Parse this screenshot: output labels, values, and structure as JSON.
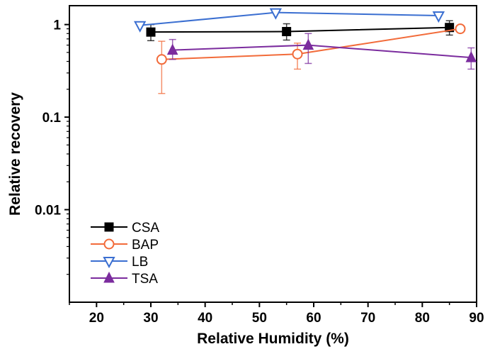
{
  "chart_data": {
    "type": "scatter",
    "xlabel": "Relative Humidity (%)",
    "ylabel": "Relative recovery",
    "xlim": [
      15,
      90
    ],
    "ylim": [
      0.001,
      1.6
    ],
    "yscale": "log",
    "xticks": [
      20,
      30,
      40,
      50,
      60,
      70,
      80,
      90
    ],
    "xtick_labels": [
      "20",
      "30",
      "40",
      "50",
      "60",
      "70",
      "80",
      "90"
    ],
    "yticks": [
      0.01,
      0.1,
      1
    ],
    "ytick_labels": [
      "0.01",
      "0.1",
      "1"
    ],
    "grid": false,
    "legend_position": "bottom-left",
    "series": [
      {
        "name": "CSA",
        "color": "#000000",
        "marker": "filled-square",
        "x": [
          30,
          55,
          85
        ],
        "y": [
          0.83,
          0.84,
          0.93
        ],
        "err_low": [
          0.67,
          0.68,
          0.77
        ],
        "err_high": [
          1.0,
          1.02,
          1.1
        ]
      },
      {
        "name": "BAP",
        "color": "#f26b3a",
        "marker": "open-circle",
        "x": [
          32,
          57,
          87
        ],
        "y": [
          0.42,
          0.48,
          0.9
        ],
        "err_low": [
          0.18,
          0.33,
          null
        ],
        "err_high": [
          0.66,
          0.63,
          null
        ]
      },
      {
        "name": "LB",
        "color": "#3b6fd1",
        "marker": "open-triangle-down",
        "x": [
          28,
          53,
          83
        ],
        "y": [
          0.98,
          1.35,
          1.25
        ],
        "err_low": [
          null,
          null,
          null
        ],
        "err_high": [
          null,
          null,
          null
        ]
      },
      {
        "name": "TSA",
        "color": "#7b2c9e",
        "marker": "filled-triangle-up",
        "x": [
          34,
          59,
          89
        ],
        "y": [
          0.53,
          0.6,
          0.44
        ],
        "err_low": [
          0.42,
          0.38,
          0.33
        ],
        "err_high": [
          0.69,
          0.8,
          0.56
        ]
      }
    ]
  }
}
